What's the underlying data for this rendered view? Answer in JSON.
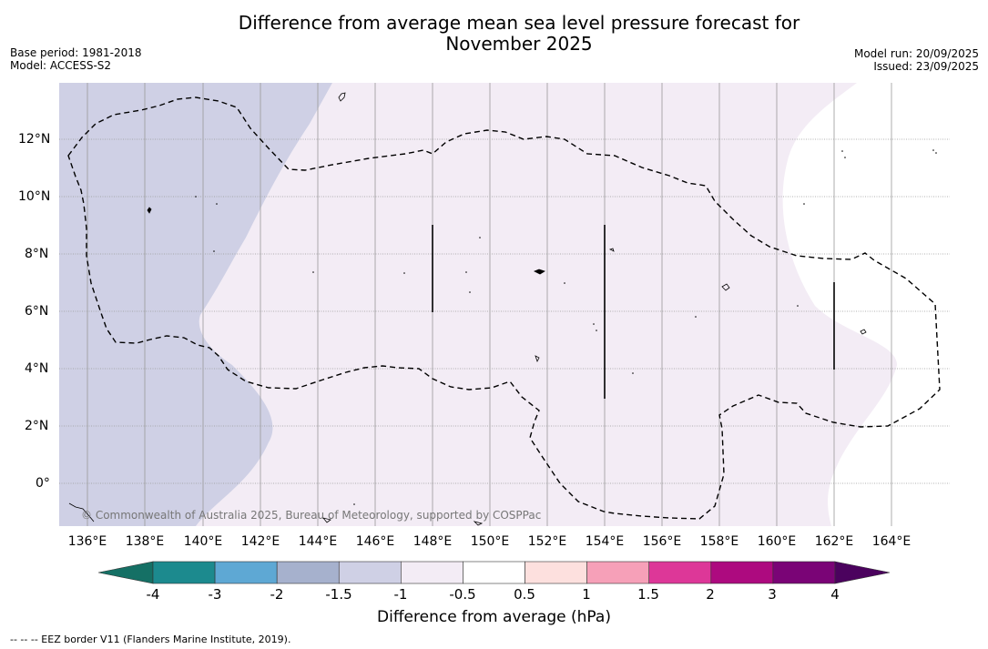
{
  "title_line1": "Difference from average mean sea level pressure forecast for",
  "title_line2": "November 2025",
  "base_period": "Base period: 1981-2018",
  "model": "Model: ACCESS-S2",
  "model_run": "Model run: 20/09/2025",
  "issued": "Issued: 23/09/2025",
  "copyright": "© Commonwealth of Australia 2025, Bureau of Meteorology, supported by COSPPac",
  "lon_labels": [
    "136°E",
    "138°E",
    "140°E",
    "142°E",
    "144°E",
    "146°E",
    "148°E",
    "150°E",
    "152°E",
    "154°E",
    "156°E",
    "158°E",
    "160°E",
    "162°E",
    "164°E"
  ],
  "lat_labels": [
    "12°N",
    "10°N",
    "8°N",
    "6°N",
    "4°N",
    "2°N",
    "0°"
  ],
  "colorbar": {
    "ticks": [
      "-4",
      "-3",
      "-2",
      "-1.5",
      "-1",
      "-0.5",
      "0.5",
      "1",
      "1.5",
      "2",
      "3",
      "4"
    ],
    "colors": [
      "#1c8a8e",
      "#5ea8d4",
      "#a6b1cd",
      "#cfd0e5",
      "#f3ecf5",
      "#ffffff",
      "#fde0de",
      "#f6a0b8",
      "#dd3798",
      "#ad0a7f",
      "#7a0476"
    ],
    "low_extend_color": "#157065",
    "high_extend_color": "#4b025e",
    "label": "Difference from average (hPa)"
  },
  "footnote": "--  --  -- EEZ border V11 (Flanders Marine Institute, 2019)."
}
